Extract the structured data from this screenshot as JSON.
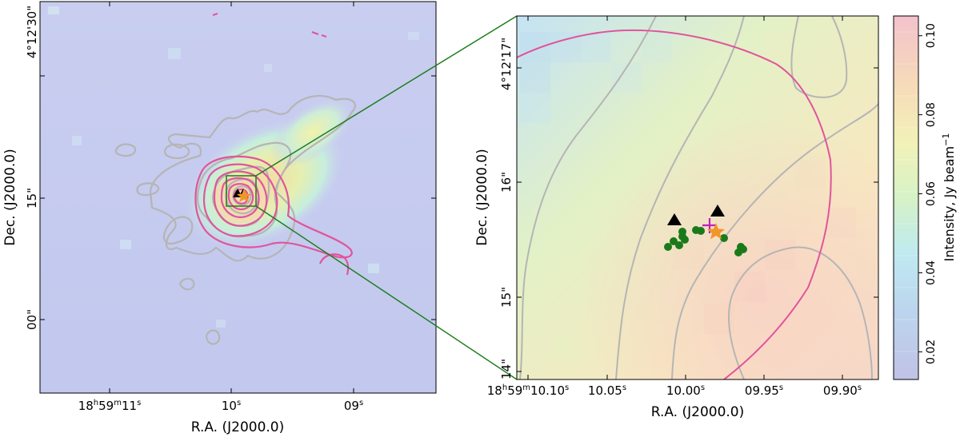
{
  "chart_data": [
    {
      "type": "heatmap",
      "panel": "left",
      "title": "",
      "xlabel": "R.A. (J2000.0)",
      "ylabel": "Dec. (J2000.0)",
      "x_ticks": [
        {
          "label_main": "18",
          "sup1": "h",
          "mid": "59",
          "sup2": "m",
          "tail": "11",
          "sup3": "s"
        },
        {
          "label_main": "10",
          "sup1": "s"
        },
        {
          "label_main": "09",
          "sup1": "s"
        }
      ],
      "y_ticks": [
        {
          "label_main": "4°12'30\""
        },
        {
          "label_main": "15\""
        },
        {
          "label_main": "00\""
        }
      ],
      "contours": {
        "gray_levels": 5,
        "magenta_levels": 6
      },
      "markers": {
        "triangles": 2,
        "star": 1
      }
    },
    {
      "type": "heatmap",
      "panel": "right",
      "title": "",
      "xlabel": "R.A. (J2000.0)",
      "ylabel": "Dec. (J2000.0)",
      "x_ticks": [
        {
          "label_main": "18",
          "sup1": "h",
          "mid": "59",
          "sup2": "m",
          "tail": "10.10",
          "sup3": "s"
        },
        {
          "label_main": "10.05",
          "sup1": "s"
        },
        {
          "label_main": "10.00",
          "sup1": "s"
        },
        {
          "label_main": "09.95",
          "sup1": "s"
        },
        {
          "label_main": "09.90",
          "sup1": "s"
        }
      ],
      "y_ticks": [
        {
          "label_main": "4°12'17\""
        },
        {
          "label_main": "16\""
        },
        {
          "label_main": "15\""
        },
        {
          "label_main": "14\""
        }
      ],
      "markers": {
        "triangles": 2,
        "star": 1,
        "plus": 1,
        "green_points": 15
      }
    },
    {
      "type": "colorbar",
      "label": "Intensity, Jy beam",
      "label_sup": "−1",
      "range": [
        0.013,
        0.105
      ],
      "ticks": [
        {
          "value": 0.02,
          "label": "0.02"
        },
        {
          "value": 0.04,
          "label": "0.04"
        },
        {
          "value": 0.06,
          "label": "0.06"
        },
        {
          "value": 0.08,
          "label": "0.08"
        },
        {
          "value": 0.1,
          "label": "0.10"
        }
      ]
    }
  ],
  "colors": {
    "gray_contour": "#b5b5b5",
    "magenta_contour": "#e0559c",
    "connector": "#1e7d1e",
    "star": "#f0962a",
    "plus": "#c020c0",
    "green_point": "#1a7a1a"
  }
}
